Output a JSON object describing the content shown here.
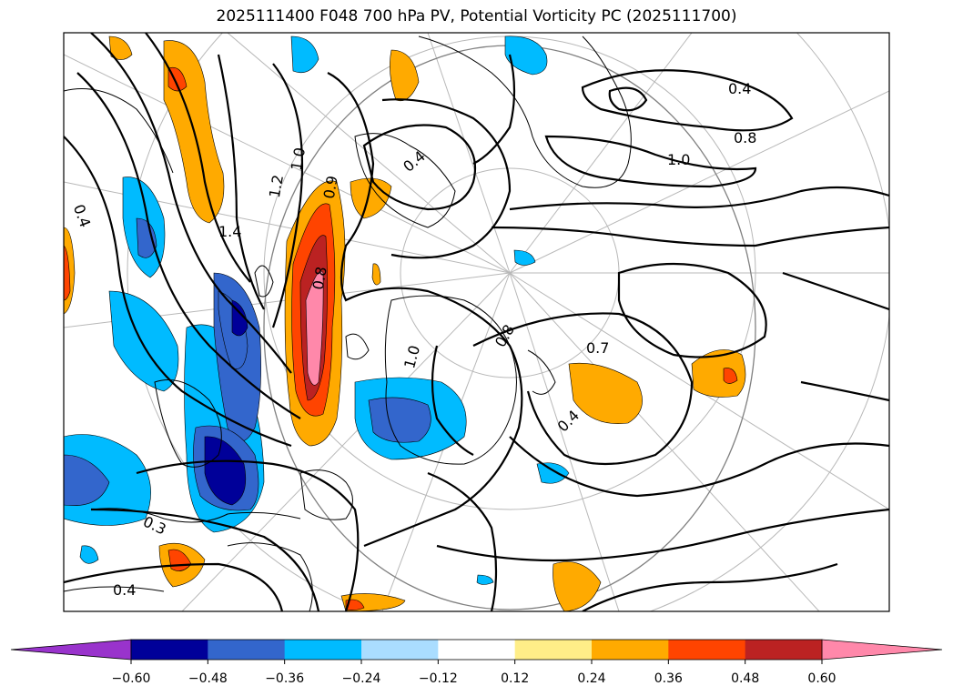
{
  "title": "2025111400 F048 700 hPa PV, Potential Vorticity PC (2025111700)",
  "contour_labels": [
    "0.4",
    "1.2",
    "1.0",
    "1.4",
    "0.4",
    "0.9",
    "0.8",
    "1.0",
    "0.8",
    "1.0",
    "0.8",
    "0.4",
    "0.7",
    "0.4",
    "0.3",
    "0.4"
  ],
  "colorbar": {
    "colors": [
      "#9933cc",
      "#000099",
      "#3366cc",
      "#00bbff",
      "#aaddff",
      "#ffffff",
      "#ffee88",
      "#ffaa00",
      "#ff4400",
      "#bb2222",
      "#ff88aa"
    ],
    "tick_labels": [
      "−0.60",
      "−0.48",
      "−0.36",
      "−0.24",
      "−0.12",
      "0.12",
      "0.24",
      "0.36",
      "0.48",
      "0.60"
    ]
  }
}
